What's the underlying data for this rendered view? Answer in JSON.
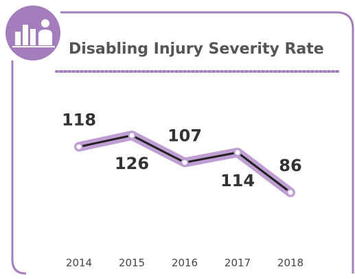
{
  "chart_data": {
    "type": "line",
    "title": "Disabling Injury Severity Rate",
    "categories": [
      "2014",
      "2015",
      "2016",
      "2017",
      "2018"
    ],
    "values": [
      118,
      126,
      107,
      114,
      86
    ],
    "color": "#bf9fd3"
  }
}
